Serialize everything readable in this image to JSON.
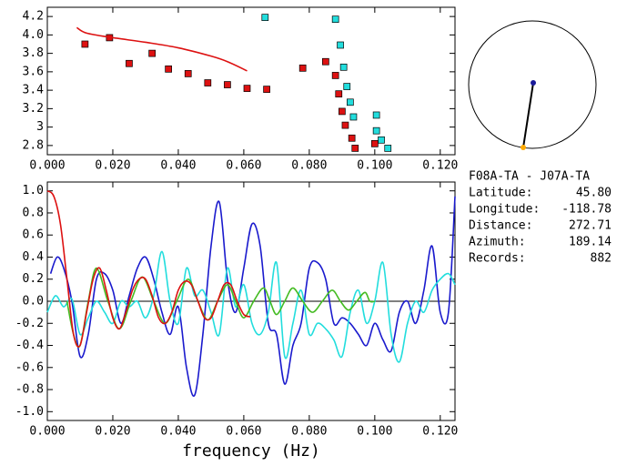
{
  "chart_data": [
    {
      "type": "scatter",
      "xlim": [
        0,
        0.1245
      ],
      "ylim": [
        2.7,
        4.3
      ],
      "xticks": [
        {
          "value": 0,
          "label": "0.000"
        },
        {
          "value": 0.02,
          "label": "0.020"
        },
        {
          "value": 0.04,
          "label": "0.040"
        },
        {
          "value": 0.06,
          "label": "0.060"
        },
        {
          "value": 0.08,
          "label": "0.080"
        },
        {
          "value": 0.1,
          "label": "0.100"
        },
        {
          "value": 0.12,
          "label": "0.120"
        }
      ],
      "yticks": [
        2.8,
        3.0,
        {
          "value": 3.2,
          "label": "3.2"
        },
        3.4,
        3.6,
        3.8,
        {
          "value": 4.0,
          "label": "4.0"
        },
        4.2
      ],
      "series": [
        {
          "color": "#dd1111",
          "marker": "square",
          "x": [
            0.0115,
            0.019,
            0.025,
            0.032,
            0.037,
            0.043,
            0.049,
            0.055,
            0.061,
            0.067,
            0.078,
            0.085,
            0.088,
            0.089,
            0.09,
            0.091,
            0.093,
            0.094,
            0.1
          ],
          "values": [
            3.9,
            3.97,
            3.69,
            3.8,
            3.63,
            3.58,
            3.48,
            3.46,
            3.42,
            3.41,
            3.64,
            3.71,
            3.56,
            3.36,
            3.17,
            3.02,
            2.88,
            2.77,
            2.82
          ]
        },
        {
          "color": "#22dddd",
          "marker": "square",
          "x": [
            0.0665,
            0.088,
            0.0895,
            0.0905,
            0.0915,
            0.0925,
            0.0935,
            0.1005,
            0.1005,
            0.102,
            0.104
          ],
          "values": [
            4.19,
            4.17,
            3.89,
            3.65,
            3.44,
            3.27,
            3.11,
            3.13,
            2.96,
            2.86,
            2.77
          ]
        },
        {
          "color": "#dd1111",
          "x": [
            0.009,
            0.012,
            0.02,
            0.03,
            0.04,
            0.05,
            0.055,
            0.061
          ],
          "values": [
            4.08,
            4.02,
            3.97,
            3.92,
            3.86,
            3.77,
            3.71,
            3.61
          ]
        }
      ]
    },
    {
      "type": "line",
      "x_label": "frequency (Hz)",
      "zero_line": true,
      "xlim": [
        0,
        0.1245
      ],
      "ylim": [
        -1.08,
        1.08
      ],
      "xticks": [
        {
          "value": 0,
          "label": "0.000"
        },
        {
          "value": 0.02,
          "label": "0.020"
        },
        {
          "value": 0.04,
          "label": "0.040"
        },
        {
          "value": 0.06,
          "label": "0.060"
        },
        {
          "value": 0.08,
          "label": "0.080"
        },
        {
          "value": 0.1,
          "label": "0.100"
        },
        {
          "value": 0.12,
          "label": "0.120"
        }
      ],
      "yticks": [
        {
          "value": -1.0,
          "label": "-1.0"
        },
        {
          "value": -0.8,
          "label": "-0.8"
        },
        {
          "value": -0.6,
          "label": "-0.6"
        },
        {
          "value": -0.4,
          "label": "-0.4"
        },
        {
          "value": -0.2,
          "label": "-0.2"
        },
        {
          "value": 0.0,
          "label": "0.0"
        },
        0.2,
        0.4,
        0.6,
        0.8,
        {
          "value": 1.0,
          "label": "1.0"
        }
      ],
      "series": [
        {
          "color": "#1a1acd",
          "x": [
            0.001,
            0.003,
            0.005,
            0.0075,
            0.01,
            0.0125,
            0.015,
            0.0175,
            0.02,
            0.0225,
            0.025,
            0.0275,
            0.03,
            0.0325,
            0.035,
            0.0375,
            0.04,
            0.0425,
            0.045,
            0.0475,
            0.05,
            0.0525,
            0.055,
            0.0575,
            0.06,
            0.0625,
            0.065,
            0.0675,
            0.07,
            0.0725,
            0.075,
            0.0775,
            0.08,
            0.0825,
            0.085,
            0.0875,
            0.09,
            0.0925,
            0.095,
            0.0975,
            0.1,
            0.1025,
            0.105,
            0.1075,
            0.11,
            0.1125,
            0.115,
            0.1175,
            0.12,
            0.1225,
            0.1245
          ],
          "values": [
            0.25,
            0.4,
            0.3,
            0.0,
            -0.5,
            -0.3,
            0.2,
            0.25,
            0.1,
            -0.2,
            0.05,
            0.3,
            0.4,
            0.2,
            -0.1,
            -0.3,
            -0.05,
            -0.6,
            -0.85,
            -0.3,
            0.5,
            0.9,
            0.2,
            -0.1,
            0.3,
            0.7,
            0.5,
            -0.2,
            -0.3,
            -0.75,
            -0.4,
            -0.2,
            0.3,
            0.35,
            0.2,
            -0.2,
            -0.15,
            -0.2,
            -0.3,
            -0.4,
            -0.2,
            -0.35,
            -0.45,
            -0.1,
            0.0,
            -0.2,
            0.1,
            0.5,
            -0.1,
            -0.1,
            0.95
          ]
        },
        {
          "color": "#22dddd",
          "x": [
            0,
            0.0025,
            0.005,
            0.0075,
            0.01,
            0.0125,
            0.015,
            0.0175,
            0.02,
            0.0225,
            0.025,
            0.0275,
            0.03,
            0.0325,
            0.035,
            0.0375,
            0.04,
            0.0425,
            0.045,
            0.0475,
            0.05,
            0.0525,
            0.055,
            0.0575,
            0.06,
            0.0625,
            0.065,
            0.0675,
            0.07,
            0.0725,
            0.075,
            0.0775,
            0.08,
            0.0825,
            0.085,
            0.0875,
            0.09,
            0.0925,
            0.095,
            0.0975,
            0.1,
            0.1025,
            0.105,
            0.1075,
            0.11,
            0.1125,
            0.115,
            0.1175,
            0.12,
            0.1225,
            0.1245
          ],
          "values": [
            -0.1,
            0.05,
            -0.05,
            0.02,
            -0.3,
            -0.15,
            0.0,
            -0.1,
            -0.2,
            0.0,
            -0.05,
            0.0,
            -0.15,
            0.05,
            0.45,
            0.0,
            -0.2,
            0.3,
            0.05,
            0.1,
            -0.1,
            -0.3,
            0.3,
            -0.05,
            0.15,
            -0.2,
            -0.3,
            -0.1,
            0.35,
            -0.5,
            -0.2,
            0.1,
            -0.3,
            -0.2,
            -0.25,
            -0.35,
            -0.5,
            -0.1,
            0.1,
            -0.2,
            0.0,
            0.35,
            -0.3,
            -0.55,
            -0.2,
            0.0,
            -0.1,
            0.1,
            0.2,
            0.25,
            0.15
          ]
        },
        {
          "color": "#44bb22",
          "x": [
            0.006,
            0.008,
            0.01,
            0.0125,
            0.015,
            0.0185,
            0.022,
            0.0255,
            0.029,
            0.0325,
            0.036,
            0.0395,
            0.043,
            0.046,
            0.049,
            0.052,
            0.055,
            0.0575,
            0.06,
            0.063,
            0.066,
            0.068,
            0.07,
            0.0725,
            0.075,
            0.078,
            0.081,
            0.084,
            0.087,
            0.0895,
            0.092,
            0.0945,
            0.097,
            0.0985,
            0.1
          ],
          "values": [
            0.0,
            -0.3,
            -0.4,
            0.0,
            0.3,
            0.0,
            -0.25,
            0.0,
            0.22,
            0.0,
            -0.2,
            0.0,
            0.2,
            0.0,
            -0.17,
            0.0,
            0.15,
            0.0,
            -0.15,
            0.0,
            0.12,
            0.0,
            -0.12,
            0.0,
            0.12,
            0.0,
            -0.1,
            0.0,
            0.1,
            0.0,
            -0.08,
            0.0,
            0.08,
            0.0,
            0.0
          ]
        },
        {
          "color": "#dd1111",
          "x": [
            0,
            0.002,
            0.004,
            0.006,
            0.008,
            0.01,
            0.012,
            0.014,
            0.016,
            0.018,
            0.02,
            0.022,
            0.024,
            0.026,
            0.028,
            0.03,
            0.032,
            0.034,
            0.036,
            0.038,
            0.04,
            0.042,
            0.044,
            0.046,
            0.048,
            0.05,
            0.052,
            0.054,
            0.056,
            0.058,
            0.06,
            0.062
          ],
          "values": [
            1.0,
            0.95,
            0.7,
            0.2,
            -0.3,
            -0.4,
            -0.1,
            0.2,
            0.3,
            0.1,
            -0.15,
            -0.25,
            -0.1,
            0.1,
            0.2,
            0.2,
            0.05,
            -0.15,
            -0.2,
            -0.1,
            0.1,
            0.18,
            0.15,
            0.0,
            -0.15,
            -0.15,
            0.0,
            0.15,
            0.15,
            0.0,
            -0.12,
            -0.14
          ]
        }
      ]
    }
  ],
  "info": {
    "title": "F08A-TA - J07A-TA",
    "rows": [
      [
        "Latitude:",
        "45.80"
      ],
      [
        "Longitude:",
        "-118.78"
      ],
      [
        "Distance:",
        "272.71"
      ],
      [
        "Azimuth:",
        "189.14"
      ],
      [
        "Records:",
        "882"
      ]
    ]
  }
}
